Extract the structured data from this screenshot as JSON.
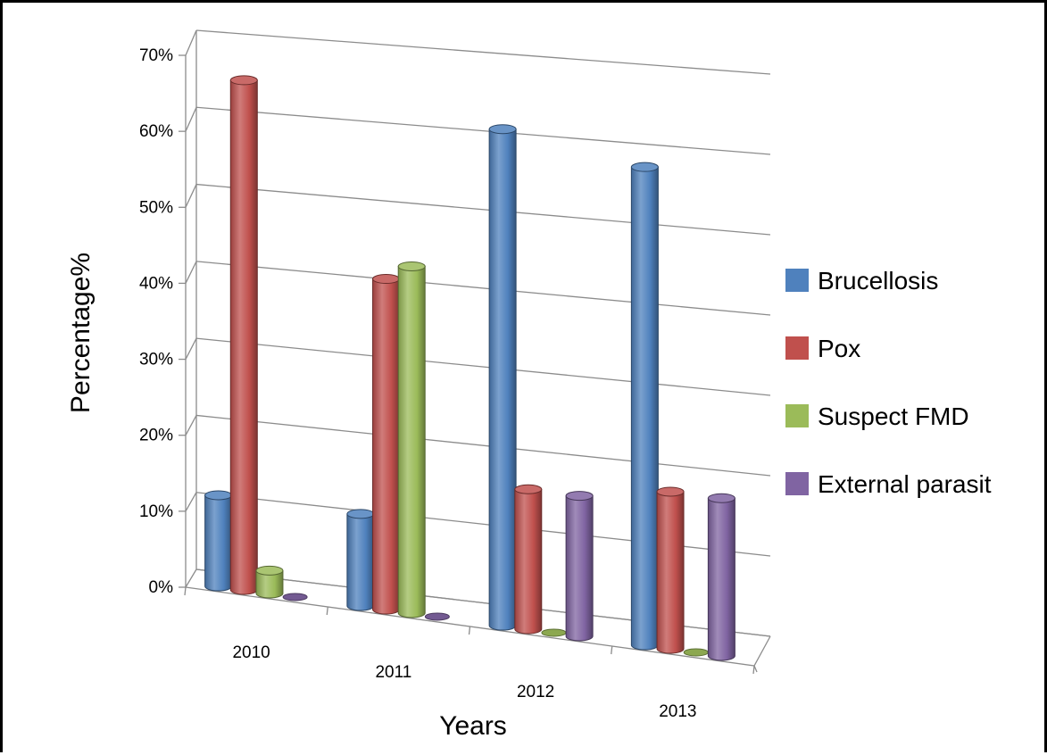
{
  "chart_data": {
    "type": "bar",
    "categories": [
      "2010",
      "2011",
      "2012",
      "2013"
    ],
    "series": [
      {
        "name": "Brucellosis",
        "values": [
          12,
          12,
          64,
          61
        ],
        "color": "#4f81bd"
      },
      {
        "name": "Pox",
        "values": [
          67,
          43,
          18,
          20
        ],
        "color": "#c0504d"
      },
      {
        "name": "Suspect FMD",
        "values": [
          3,
          45,
          0,
          0
        ],
        "color": "#9bbb59"
      },
      {
        "name": "External parasit",
        "values": [
          0,
          0,
          18,
          20
        ],
        "color": "#8064a2"
      }
    ],
    "yticks": [
      "0%",
      "10%",
      "20%",
      "30%",
      "40%",
      "50%",
      "60%",
      "70%"
    ],
    "ylim": [
      0,
      70
    ],
    "xlabel": "Years",
    "ylabel": "Percentage%",
    "grid": true,
    "legend": "right"
  }
}
